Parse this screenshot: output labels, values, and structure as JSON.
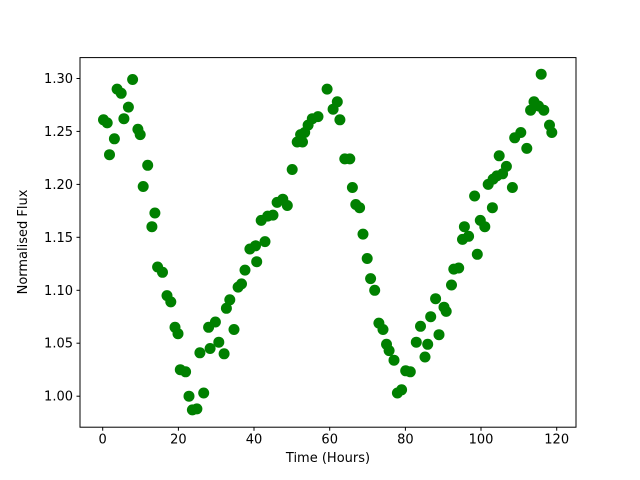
{
  "figure": {
    "background_color": "#ffffff",
    "axes_edge_color": "#000000",
    "tick_color": "#000000"
  },
  "chart_data": {
    "type": "scatter",
    "title": "",
    "xlabel": "Time (Hours)",
    "ylabel": "Normalised Flux",
    "xlim": [
      -6.0,
      125.1
    ],
    "ylim": [
      0.9707,
      1.3197
    ],
    "x_tick_values": [
      0,
      20,
      40,
      60,
      80,
      100,
      120
    ],
    "x_tick_labels": [
      "0",
      "20",
      "40",
      "60",
      "80",
      "100",
      "120"
    ],
    "y_tick_values": [
      1.0,
      1.05,
      1.1,
      1.15,
      1.2,
      1.25,
      1.3
    ],
    "y_tick_labels": [
      "1.00",
      "1.05",
      "1.10",
      "1.15",
      "1.20",
      "1.25",
      "1.30"
    ],
    "grid": false,
    "legend": null,
    "marker": {
      "shape": "circle",
      "color": "#008000",
      "radius_px": 5.5
    },
    "points": [
      [
        0.2,
        1.261
      ],
      [
        1.2,
        1.258
      ],
      [
        1.8,
        1.228
      ],
      [
        3.1,
        1.243
      ],
      [
        3.8,
        1.29
      ],
      [
        4.9,
        1.286
      ],
      [
        5.6,
        1.262
      ],
      [
        6.8,
        1.273
      ],
      [
        7.9,
        1.299
      ],
      [
        9.3,
        1.252
      ],
      [
        9.9,
        1.247
      ],
      [
        10.7,
        1.198
      ],
      [
        11.9,
        1.218
      ],
      [
        13.0,
        1.16
      ],
      [
        13.8,
        1.173
      ],
      [
        14.5,
        1.122
      ],
      [
        15.8,
        1.117
      ],
      [
        17.0,
        1.095
      ],
      [
        18.0,
        1.089
      ],
      [
        19.1,
        1.065
      ],
      [
        19.9,
        1.059
      ],
      [
        20.5,
        1.025
      ],
      [
        21.9,
        1.023
      ],
      [
        22.8,
        1.0
      ],
      [
        23.7,
        0.987
      ],
      [
        24.9,
        0.988
      ],
      [
        25.7,
        1.041
      ],
      [
        26.7,
        1.003
      ],
      [
        28.0,
        1.065
      ],
      [
        28.4,
        1.045
      ],
      [
        29.8,
        1.07
      ],
      [
        30.7,
        1.051
      ],
      [
        32.1,
        1.04
      ],
      [
        32.7,
        1.083
      ],
      [
        33.6,
        1.091
      ],
      [
        34.7,
        1.063
      ],
      [
        35.8,
        1.103
      ],
      [
        36.7,
        1.106
      ],
      [
        37.6,
        1.119
      ],
      [
        38.9,
        1.139
      ],
      [
        40.4,
        1.142
      ],
      [
        40.7,
        1.127
      ],
      [
        41.9,
        1.166
      ],
      [
        42.9,
        1.146
      ],
      [
        43.6,
        1.17
      ],
      [
        45.0,
        1.171
      ],
      [
        46.1,
        1.183
      ],
      [
        47.6,
        1.186
      ],
      [
        48.8,
        1.18
      ],
      [
        50.1,
        1.214
      ],
      [
        51.4,
        1.24
      ],
      [
        52.3,
        1.247
      ],
      [
        52.8,
        1.24
      ],
      [
        53.4,
        1.249
      ],
      [
        54.3,
        1.256
      ],
      [
        55.4,
        1.262
      ],
      [
        56.9,
        1.264
      ],
      [
        59.3,
        1.29
      ],
      [
        60.9,
        1.271
      ],
      [
        62.0,
        1.278
      ],
      [
        62.7,
        1.261
      ],
      [
        64.0,
        1.224
      ],
      [
        65.3,
        1.224
      ],
      [
        66.0,
        1.197
      ],
      [
        66.9,
        1.181
      ],
      [
        67.9,
        1.178
      ],
      [
        68.8,
        1.153
      ],
      [
        69.9,
        1.13
      ],
      [
        70.8,
        1.111
      ],
      [
        71.9,
        1.1
      ],
      [
        73.0,
        1.069
      ],
      [
        74.1,
        1.063
      ],
      [
        75.0,
        1.049
      ],
      [
        75.7,
        1.043
      ],
      [
        77.0,
        1.034
      ],
      [
        77.9,
        1.003
      ],
      [
        79.0,
        1.006
      ],
      [
        80.1,
        1.024
      ],
      [
        81.3,
        1.023
      ],
      [
        82.9,
        1.051
      ],
      [
        84.0,
        1.066
      ],
      [
        85.2,
        1.037
      ],
      [
        85.9,
        1.049
      ],
      [
        86.7,
        1.075
      ],
      [
        88.0,
        1.092
      ],
      [
        88.9,
        1.058
      ],
      [
        90.2,
        1.084
      ],
      [
        90.8,
        1.08
      ],
      [
        92.2,
        1.105
      ],
      [
        92.8,
        1.12
      ],
      [
        94.1,
        1.121
      ],
      [
        95.1,
        1.148
      ],
      [
        95.6,
        1.16
      ],
      [
        96.7,
        1.151
      ],
      [
        98.3,
        1.189
      ],
      [
        99.0,
        1.134
      ],
      [
        99.8,
        1.166
      ],
      [
        101.0,
        1.16
      ],
      [
        101.9,
        1.2
      ],
      [
        103.0,
        1.178
      ],
      [
        103.2,
        1.205
      ],
      [
        104.2,
        1.208
      ],
      [
        104.8,
        1.227
      ],
      [
        105.7,
        1.21
      ],
      [
        106.7,
        1.217
      ],
      [
        108.3,
        1.197
      ],
      [
        108.9,
        1.244
      ],
      [
        110.5,
        1.249
      ],
      [
        112.1,
        1.234
      ],
      [
        113.1,
        1.27
      ],
      [
        114.0,
        1.278
      ],
      [
        115.2,
        1.274
      ],
      [
        115.9,
        1.304
      ],
      [
        116.6,
        1.27
      ],
      [
        118.1,
        1.256
      ],
      [
        118.7,
        1.249
      ]
    ]
  }
}
